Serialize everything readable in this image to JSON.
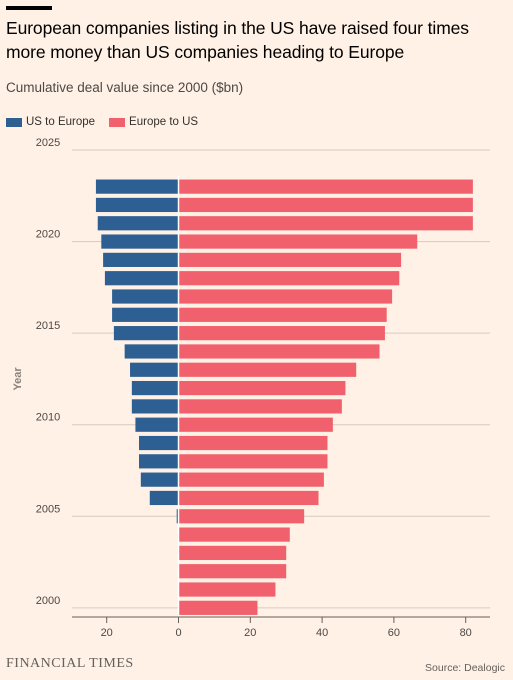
{
  "header": {
    "title": "European companies listing in the US have raised four times more money than US companies heading to Europe",
    "subtitle": "Cumulative deal value since 2000 ($bn)"
  },
  "legend": [
    {
      "label": "US to Europe",
      "color": "#2e5f93"
    },
    {
      "label": "Europe to US",
      "color": "#f0616d"
    }
  ],
  "footer": {
    "brand": "FINANCIAL TIMES",
    "source": "Source: Dealogic"
  },
  "chart_data": {
    "type": "bar",
    "orientation": "horizontal-diverging",
    "ylabel": "Year",
    "xlabel": "",
    "y_ticks": [
      "2000",
      "2005",
      "2010",
      "2015",
      "2020",
      "2025"
    ],
    "x_ticks": [
      "20",
      "0",
      "20",
      "40",
      "60",
      "80"
    ],
    "xlim": [
      -30,
      82
    ],
    "ylim": [
      1999.5,
      2025
    ],
    "years": [
      2000,
      2001,
      2002,
      2003,
      2004,
      2005,
      2006,
      2007,
      2008,
      2009,
      2010,
      2011,
      2012,
      2013,
      2014,
      2015,
      2016,
      2017,
      2018,
      2019,
      2020,
      2021,
      2022,
      2023
    ],
    "series": [
      {
        "name": "US to Europe",
        "color": "#2e5f93",
        "values": [
          0,
          0,
          0,
          0,
          0,
          0.5,
          8,
          10.5,
          11,
          11,
          12,
          13,
          13,
          13.5,
          15,
          18,
          18.5,
          18.5,
          20.5,
          21,
          21.5,
          22.5,
          23,
          23
        ]
      },
      {
        "name": "Europe to US",
        "color": "#f0616d",
        "values": [
          22,
          27,
          30,
          30,
          31,
          35,
          39,
          40.5,
          41.5,
          41.5,
          43,
          45.5,
          46.5,
          49.5,
          56,
          57.5,
          58,
          59.5,
          61.5,
          62,
          66.5,
          82,
          82,
          82
        ]
      }
    ]
  }
}
